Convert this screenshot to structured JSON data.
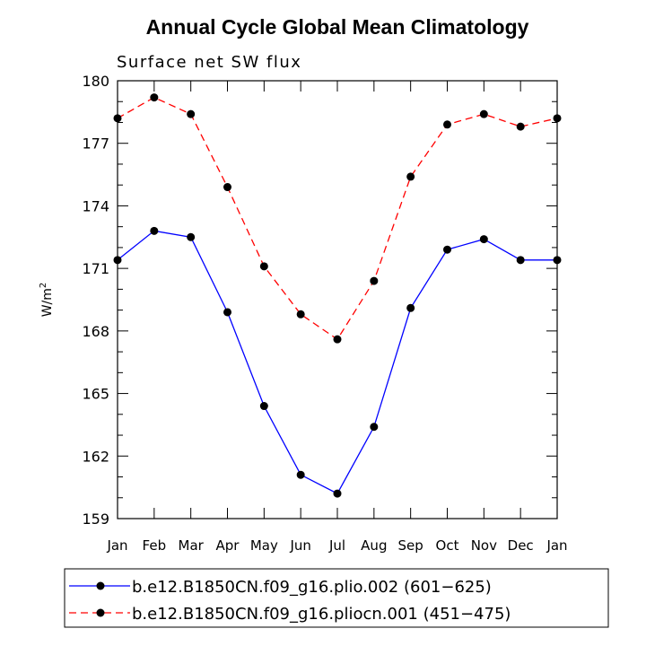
{
  "chart_data": {
    "type": "line",
    "title": "Annual Cycle Global Mean Climatology",
    "subtitle": "Surface net SW flux",
    "xlabel": "",
    "ylabel": "W/m",
    "ylabel_sup": "2",
    "ylim": [
      159,
      180
    ],
    "yticks": [
      159,
      162,
      165,
      168,
      171,
      174,
      177,
      180
    ],
    "categories": [
      "Jan",
      "Feb",
      "Mar",
      "Apr",
      "May",
      "Jun",
      "Jul",
      "Aug",
      "Sep",
      "Oct",
      "Nov",
      "Dec",
      "Jan"
    ],
    "grid": false,
    "legend_position": "bottom",
    "series": [
      {
        "name": "b.e12.B1850CN.f09_g16.plio.002 (601−625)",
        "color": "#0000ff",
        "dash": "solid",
        "values": [
          171.4,
          172.8,
          172.5,
          168.9,
          164.4,
          161.1,
          160.2,
          163.4,
          169.1,
          171.9,
          172.4,
          171.4,
          171.4
        ]
      },
      {
        "name": "b.e12.B1850CN.f09_g16.pliocn.001 (451−475)",
        "color": "#ff0000",
        "dash": "dashed",
        "values": [
          178.2,
          179.2,
          178.4,
          174.9,
          171.1,
          168.8,
          167.6,
          170.4,
          175.4,
          177.9,
          178.4,
          177.8,
          178.2
        ]
      }
    ]
  }
}
